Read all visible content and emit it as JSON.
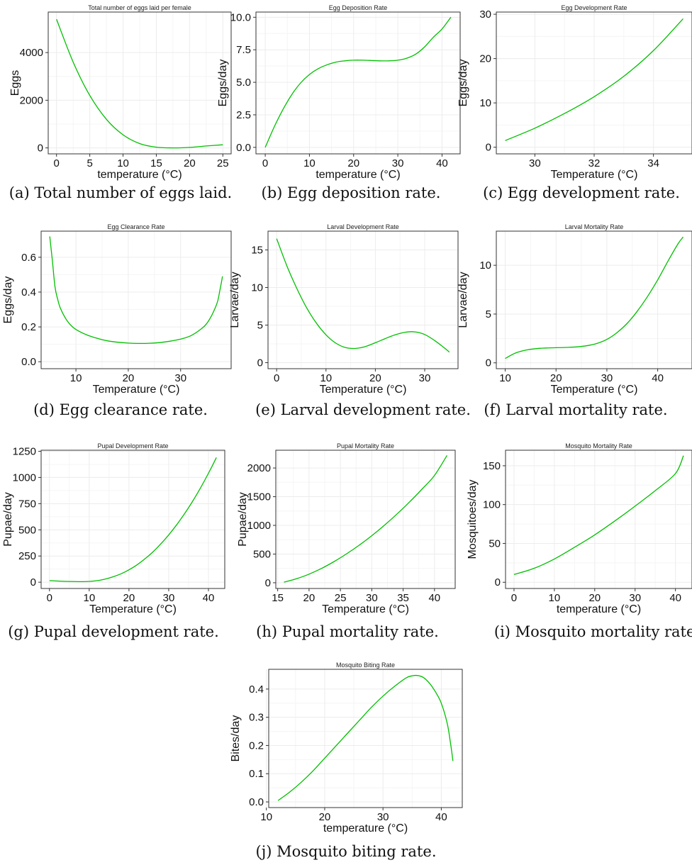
{
  "colors": {
    "curve": "#00c000"
  },
  "chart_data": [
    {
      "id": "a",
      "type": "line",
      "title": "Total number of eggs laid per female",
      "xlabel": "temperature (°C)",
      "ylabel": "Eggs",
      "caption": "(a) Total number of eggs laid.",
      "xlim": [
        -1.25,
        26.25
      ],
      "ylim": [
        -250,
        5700
      ],
      "xticks": [
        0,
        5,
        10,
        15,
        20,
        25
      ],
      "yticks": [
        0,
        2000,
        4000
      ],
      "x": [
        0,
        2.5,
        5,
        7.5,
        10,
        12.5,
        15,
        17.5,
        20,
        22.5,
        25
      ],
      "y": [
        5400,
        3600,
        2200,
        1200,
        550,
        180,
        30,
        0,
        20,
        80,
        130
      ]
    },
    {
      "id": "b",
      "type": "line",
      "title": "Egg Deposition Rate",
      "xlabel": "temperature (°C)",
      "ylabel": "Eggs/day",
      "caption": "(b) Egg deposition rate.",
      "xlim": [
        -2.1,
        44.1
      ],
      "ylim": [
        -0.5,
        10.4
      ],
      "xticks": [
        0,
        10,
        20,
        30,
        40
      ],
      "yticks": [
        0.0,
        2.5,
        5.0,
        7.5,
        10.0
      ],
      "tick_labels_y": [
        "0.0",
        "2.5",
        "5.0",
        "7.5",
        "10.0"
      ],
      "x": [
        0,
        2,
        4,
        6,
        8,
        10,
        12,
        14,
        16,
        18,
        20,
        22,
        24,
        26,
        28,
        30,
        32,
        34,
        36,
        38,
        40,
        42
      ],
      "y": [
        0.0,
        1.55,
        2.9,
        4.05,
        4.95,
        5.6,
        6.05,
        6.35,
        6.55,
        6.65,
        6.7,
        6.7,
        6.68,
        6.65,
        6.65,
        6.7,
        6.85,
        7.15,
        7.7,
        8.45,
        9.1,
        10.0
      ]
    },
    {
      "id": "c",
      "type": "line",
      "title": "Egg Development Rate",
      "xlabel": "Temperature (°C)",
      "ylabel": "Eggs/day",
      "caption": "(c) Egg development rate.",
      "xlim": [
        28.7,
        35.3
      ],
      "ylim": [
        -1.5,
        30.5
      ],
      "xticks": [
        30,
        32,
        34
      ],
      "yticks": [
        0,
        10,
        20,
        30
      ],
      "x": [
        29,
        30,
        31,
        32,
        33,
        34,
        35
      ],
      "y": [
        1.5,
        4.3,
        7.6,
        11.4,
        16.0,
        21.8,
        29.0
      ]
    },
    {
      "id": "d",
      "type": "line",
      "title": "Egg Clearance Rate",
      "xlabel": "Temperature (°C)",
      "ylabel": "Eggs/day",
      "caption": "(d) Egg clearance rate.",
      "xlim": [
        3.35,
        39.65
      ],
      "ylim": [
        -0.04,
        0.75
      ],
      "xticks": [
        10,
        20,
        30
      ],
      "yticks": [
        0.0,
        0.2,
        0.4,
        0.6
      ],
      "tick_labels_y": [
        "0.0",
        "0.2",
        "0.4",
        "0.6"
      ],
      "x": [
        5,
        5.5,
        6,
        6.5,
        7,
        8,
        9,
        10,
        12,
        14,
        16,
        18,
        20,
        22,
        24,
        26,
        28,
        30,
        32,
        34,
        35,
        36,
        37,
        37.5,
        38
      ],
      "y": [
        0.72,
        0.58,
        0.43,
        0.36,
        0.31,
        0.25,
        0.21,
        0.185,
        0.155,
        0.135,
        0.12,
        0.112,
        0.107,
        0.105,
        0.106,
        0.11,
        0.118,
        0.13,
        0.15,
        0.19,
        0.22,
        0.27,
        0.34,
        0.41,
        0.49
      ]
    },
    {
      "id": "e",
      "type": "line",
      "title": "Larval Development Rate",
      "xlabel": "Temperature (°C)",
      "ylabel": "Larvae/day",
      "caption": "(e) Larval development rate.",
      "xlim": [
        -1.75,
        36.75
      ],
      "ylim": [
        -0.8,
        17.5
      ],
      "xticks": [
        0,
        10,
        20,
        30
      ],
      "yticks": [
        0,
        5,
        10,
        15
      ],
      "x": [
        0,
        2,
        4,
        6,
        8,
        10,
        12,
        14,
        16,
        18,
        20,
        22,
        24,
        26,
        28,
        30,
        32,
        34,
        35
      ],
      "y": [
        16.5,
        13.0,
        10.0,
        7.4,
        5.3,
        3.7,
        2.6,
        2.0,
        1.9,
        2.15,
        2.65,
        3.2,
        3.7,
        4.05,
        4.1,
        3.75,
        2.95,
        1.95,
        1.4
      ]
    },
    {
      "id": "f",
      "type": "line",
      "title": "Larval Mortality Rate",
      "xlabel": "Temperature (°C)",
      "ylabel": "Larvae/day",
      "caption": "(f) Larval mortality rate.",
      "xlim": [
        8.25,
        46.75
      ],
      "ylim": [
        -0.6,
        13.5
      ],
      "xticks": [
        10,
        20,
        30,
        40
      ],
      "yticks": [
        0,
        5,
        10
      ],
      "x": [
        10,
        12,
        14,
        16,
        18,
        20,
        22,
        24,
        26,
        28,
        30,
        32,
        34,
        36,
        38,
        40,
        42,
        44,
        45
      ],
      "y": [
        0.45,
        1.0,
        1.3,
        1.45,
        1.52,
        1.55,
        1.58,
        1.63,
        1.75,
        1.98,
        2.4,
        3.1,
        4.05,
        5.3,
        6.8,
        8.5,
        10.4,
        12.2,
        12.9
      ]
    },
    {
      "id": "g",
      "type": "line",
      "title": "Pupal Development Rate",
      "xlabel": "Temperature (°C)",
      "ylabel": "Pupae/day",
      "caption": "(g) Pupal development rate.",
      "xlim": [
        -2.1,
        44.1
      ],
      "ylim": [
        -60,
        1260
      ],
      "xticks": [
        0,
        10,
        20,
        30,
        40
      ],
      "yticks": [
        0,
        250,
        500,
        750,
        1000,
        1250
      ],
      "x": [
        0,
        4,
        8,
        10,
        12,
        14,
        16,
        18,
        20,
        22,
        24,
        26,
        28,
        30,
        32,
        34,
        36,
        38,
        40,
        42
      ],
      "y": [
        15,
        8,
        5,
        8,
        15,
        30,
        52,
        80,
        118,
        165,
        222,
        288,
        365,
        452,
        548,
        655,
        772,
        900,
        1040,
        1190
      ]
    },
    {
      "id": "h",
      "type": "line",
      "title": "Pupal Mortality Rate",
      "xlabel": "Temperature (°C)",
      "ylabel": "Pupae/day",
      "caption": "(h) Pupal mortality rate.",
      "xlim": [
        14.7,
        43.3
      ],
      "ylim": [
        -100,
        2310
      ],
      "xticks": [
        15,
        20,
        25,
        30,
        35,
        40
      ],
      "yticks": [
        0,
        500,
        1000,
        1500,
        2000
      ],
      "x": [
        16,
        18,
        20,
        22,
        24,
        26,
        28,
        30,
        32,
        34,
        36,
        38,
        40,
        42
      ],
      "y": [
        10,
        70,
        150,
        250,
        370,
        505,
        655,
        820,
        1000,
        1195,
        1405,
        1630,
        1870,
        2220
      ]
    },
    {
      "id": "i",
      "type": "line",
      "title": "Mosquito Mortality Rate",
      "xlabel": "temperature (°C)",
      "ylabel": "Mosquitoes/day",
      "caption": "(i) Mosquito mortality rate.",
      "xlim": [
        -2.1,
        44.1
      ],
      "ylim": [
        -8,
        170
      ],
      "xticks": [
        0,
        10,
        20,
        30,
        40
      ],
      "yticks": [
        0,
        50,
        100,
        150
      ],
      "x": [
        0,
        5,
        10,
        15,
        20,
        25,
        30,
        35,
        40,
        42
      ],
      "y": [
        10,
        18,
        30,
        45,
        61,
        79,
        98,
        118,
        140,
        163
      ]
    },
    {
      "id": "j",
      "type": "line",
      "title": "Mosquito Biting Rate",
      "xlabel": "temperature (°C)",
      "ylabel": "Bites/day",
      "caption": "(j) Mosquito biting rate.",
      "xlim": [
        10.4,
        43.6
      ],
      "ylim": [
        -0.02,
        0.47
      ],
      "xticks": [
        10,
        20,
        30,
        40
      ],
      "yticks": [
        0.0,
        0.1,
        0.2,
        0.3,
        0.4
      ],
      "tick_labels_y": [
        "0.0",
        "0.1",
        "0.2",
        "0.3",
        "0.4"
      ],
      "x": [
        12,
        14,
        16,
        18,
        20,
        22,
        24,
        26,
        28,
        30,
        32,
        34,
        35,
        36,
        37,
        38,
        39,
        40,
        41,
        41.5,
        42
      ],
      "y": [
        0.005,
        0.035,
        0.07,
        0.11,
        0.155,
        0.2,
        0.245,
        0.29,
        0.335,
        0.375,
        0.41,
        0.44,
        0.447,
        0.448,
        0.44,
        0.42,
        0.39,
        0.35,
        0.28,
        0.22,
        0.145
      ]
    }
  ]
}
